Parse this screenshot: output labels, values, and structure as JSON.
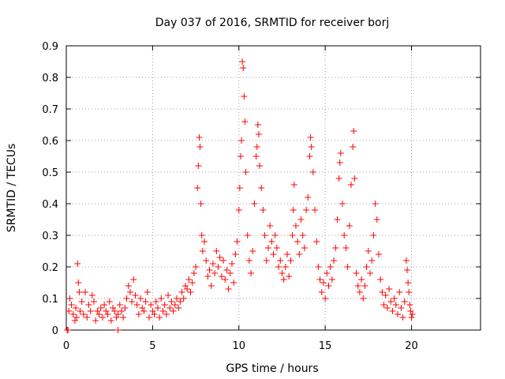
{
  "chart_data": {
    "type": "scatter",
    "title": "Day 037 of 2016, SRMTID for receiver borj",
    "xlabel": "GPS time / hours",
    "ylabel": "SRMTID / TECUs",
    "xlim": [
      0,
      24
    ],
    "ylim": [
      0,
      0.9
    ],
    "xticks": [
      0,
      5,
      10,
      15,
      20
    ],
    "yticks": [
      0,
      0.1,
      0.2,
      0.3,
      0.4,
      0.5,
      0.6,
      0.7,
      0.8,
      0.9
    ],
    "grid": true,
    "marker": "+",
    "color": "#ff0000",
    "series": [
      {
        "name": "SRMTID",
        "points": [
          [
            0.05,
            0.0
          ],
          [
            0.1,
            0.0
          ],
          [
            0.15,
            0.06
          ],
          [
            0.2,
            0.1
          ],
          [
            0.3,
            0.08
          ],
          [
            0.4,
            0.05
          ],
          [
            0.5,
            0.03
          ],
          [
            0.55,
            0.07
          ],
          [
            0.6,
            0.04
          ],
          [
            0.65,
            0.21
          ],
          [
            0.7,
            0.15
          ],
          [
            0.75,
            0.12
          ],
          [
            0.8,
            0.06
          ],
          [
            0.9,
            0.09
          ],
          [
            1.0,
            0.05
          ],
          [
            1.1,
            0.12
          ],
          [
            1.2,
            0.04
          ],
          [
            1.3,
            0.08
          ],
          [
            1.4,
            0.06
          ],
          [
            1.5,
            0.11
          ],
          [
            1.6,
            0.09
          ],
          [
            1.7,
            0.03
          ],
          [
            1.8,
            0.06
          ],
          [
            1.9,
            0.05
          ],
          [
            2.0,
            0.07
          ],
          [
            2.1,
            0.04
          ],
          [
            2.2,
            0.08
          ],
          [
            2.3,
            0.06
          ],
          [
            2.4,
            0.05
          ],
          [
            2.5,
            0.09
          ],
          [
            2.6,
            0.03
          ],
          [
            2.7,
            0.07
          ],
          [
            2.8,
            0.06
          ],
          [
            2.9,
            0.04
          ],
          [
            3.0,
            0.0
          ],
          [
            3.0,
            0.05
          ],
          [
            3.1,
            0.08
          ],
          [
            3.2,
            0.06
          ],
          [
            3.3,
            0.04
          ],
          [
            3.4,
            0.07
          ],
          [
            3.5,
            0.1
          ],
          [
            3.6,
            0.14
          ],
          [
            3.7,
            0.12
          ],
          [
            3.8,
            0.09
          ],
          [
            3.9,
            0.16
          ],
          [
            4.0,
            0.11
          ],
          [
            4.1,
            0.08
          ],
          [
            4.2,
            0.05
          ],
          [
            4.3,
            0.1
          ],
          [
            4.4,
            0.07
          ],
          [
            4.5,
            0.06
          ],
          [
            4.6,
            0.09
          ],
          [
            4.7,
            0.12
          ],
          [
            4.8,
            0.04
          ],
          [
            4.9,
            0.08
          ],
          [
            5.0,
            0.06
          ],
          [
            5.1,
            0.05
          ],
          [
            5.2,
            0.09
          ],
          [
            5.3,
            0.07
          ],
          [
            5.4,
            0.04
          ],
          [
            5.5,
            0.1
          ],
          [
            5.6,
            0.06
          ],
          [
            5.7,
            0.08
          ],
          [
            5.8,
            0.05
          ],
          [
            5.9,
            0.11
          ],
          [
            6.0,
            0.07
          ],
          [
            6.1,
            0.09
          ],
          [
            6.2,
            0.06
          ],
          [
            6.3,
            0.08
          ],
          [
            6.4,
            0.1
          ],
          [
            6.5,
            0.07
          ],
          [
            6.6,
            0.09
          ],
          [
            6.7,
            0.12
          ],
          [
            6.8,
            0.1
          ],
          [
            6.9,
            0.14
          ],
          [
            7.0,
            0.13
          ],
          [
            7.1,
            0.16
          ],
          [
            7.2,
            0.12
          ],
          [
            7.3,
            0.15
          ],
          [
            7.4,
            0.18
          ],
          [
            7.5,
            0.2
          ],
          [
            7.6,
            0.45
          ],
          [
            7.65,
            0.52
          ],
          [
            7.7,
            0.61
          ],
          [
            7.75,
            0.58
          ],
          [
            7.8,
            0.4
          ],
          [
            7.85,
            0.3
          ],
          [
            7.9,
            0.25
          ],
          [
            8.0,
            0.28
          ],
          [
            8.1,
            0.22
          ],
          [
            8.2,
            0.17
          ],
          [
            8.3,
            0.19
          ],
          [
            8.4,
            0.14
          ],
          [
            8.5,
            0.21
          ],
          [
            8.6,
            0.18
          ],
          [
            8.7,
            0.25
          ],
          [
            8.8,
            0.2
          ],
          [
            8.9,
            0.23
          ],
          [
            9.0,
            0.17
          ],
          [
            9.1,
            0.22
          ],
          [
            9.2,
            0.16
          ],
          [
            9.3,
            0.19
          ],
          [
            9.4,
            0.13
          ],
          [
            9.5,
            0.18
          ],
          [
            9.6,
            0.21
          ],
          [
            9.7,
            0.15
          ],
          [
            9.8,
            0.24
          ],
          [
            9.9,
            0.28
          ],
          [
            10.0,
            0.38
          ],
          [
            10.05,
            0.45
          ],
          [
            10.1,
            0.55
          ],
          [
            10.15,
            0.6
          ],
          [
            10.2,
            0.85
          ],
          [
            10.25,
            0.83
          ],
          [
            10.3,
            0.74
          ],
          [
            10.35,
            0.66
          ],
          [
            10.4,
            0.5
          ],
          [
            10.5,
            0.3
          ],
          [
            10.6,
            0.22
          ],
          [
            10.7,
            0.18
          ],
          [
            10.8,
            0.25
          ],
          [
            10.9,
            0.4
          ],
          [
            11.0,
            0.55
          ],
          [
            11.05,
            0.58
          ],
          [
            11.1,
            0.65
          ],
          [
            11.15,
            0.62
          ],
          [
            11.2,
            0.52
          ],
          [
            11.3,
            0.45
          ],
          [
            11.4,
            0.38
          ],
          [
            11.5,
            0.3
          ],
          [
            11.6,
            0.22
          ],
          [
            11.7,
            0.26
          ],
          [
            11.8,
            0.33
          ],
          [
            11.9,
            0.28
          ],
          [
            12.0,
            0.24
          ],
          [
            12.1,
            0.3
          ],
          [
            12.2,
            0.26
          ],
          [
            12.3,
            0.2
          ],
          [
            12.4,
            0.22
          ],
          [
            12.5,
            0.18
          ],
          [
            12.6,
            0.16
          ],
          [
            12.7,
            0.2
          ],
          [
            12.8,
            0.24
          ],
          [
            12.9,
            0.17
          ],
          [
            13.0,
            0.22
          ],
          [
            13.1,
            0.3
          ],
          [
            13.15,
            0.38
          ],
          [
            13.2,
            0.46
          ],
          [
            13.3,
            0.33
          ],
          [
            13.4,
            0.28
          ],
          [
            13.5,
            0.24
          ],
          [
            13.6,
            0.35
          ],
          [
            13.7,
            0.3
          ],
          [
            13.8,
            0.26
          ],
          [
            13.9,
            0.38
          ],
          [
            14.0,
            0.42
          ],
          [
            14.1,
            0.55
          ],
          [
            14.15,
            0.61
          ],
          [
            14.2,
            0.58
          ],
          [
            14.3,
            0.5
          ],
          [
            14.4,
            0.38
          ],
          [
            14.5,
            0.28
          ],
          [
            14.6,
            0.2
          ],
          [
            14.7,
            0.16
          ],
          [
            14.8,
            0.12
          ],
          [
            14.9,
            0.15
          ],
          [
            15.0,
            0.1
          ],
          [
            15.1,
            0.18
          ],
          [
            15.2,
            0.14
          ],
          [
            15.3,
            0.2
          ],
          [
            15.4,
            0.16
          ],
          [
            15.5,
            0.22
          ],
          [
            15.6,
            0.26
          ],
          [
            15.7,
            0.35
          ],
          [
            15.8,
            0.48
          ],
          [
            15.85,
            0.53
          ],
          [
            15.9,
            0.56
          ],
          [
            16.0,
            0.4
          ],
          [
            16.1,
            0.3
          ],
          [
            16.2,
            0.26
          ],
          [
            16.3,
            0.2
          ],
          [
            16.4,
            0.33
          ],
          [
            16.5,
            0.46
          ],
          [
            16.6,
            0.58
          ],
          [
            16.65,
            0.63
          ],
          [
            16.7,
            0.48
          ],
          [
            16.8,
            0.18
          ],
          [
            16.9,
            0.14
          ],
          [
            17.0,
            0.12
          ],
          [
            17.1,
            0.16
          ],
          [
            17.2,
            0.1
          ],
          [
            17.3,
            0.14
          ],
          [
            17.4,
            0.2
          ],
          [
            17.5,
            0.25
          ],
          [
            17.6,
            0.18
          ],
          [
            17.7,
            0.22
          ],
          [
            17.8,
            0.3
          ],
          [
            17.9,
            0.4
          ],
          [
            18.0,
            0.35
          ],
          [
            18.1,
            0.24
          ],
          [
            18.2,
            0.16
          ],
          [
            18.3,
            0.12
          ],
          [
            18.4,
            0.08
          ],
          [
            18.5,
            0.11
          ],
          [
            18.6,
            0.07
          ],
          [
            18.7,
            0.13
          ],
          [
            18.8,
            0.09
          ],
          [
            18.9,
            0.06
          ],
          [
            19.0,
            0.1
          ],
          [
            19.1,
            0.08
          ],
          [
            19.2,
            0.05
          ],
          [
            19.3,
            0.12
          ],
          [
            19.4,
            0.07
          ],
          [
            19.5,
            0.04
          ],
          [
            19.6,
            0.09
          ],
          [
            19.7,
            0.22
          ],
          [
            19.75,
            0.19
          ],
          [
            19.8,
            0.15
          ],
          [
            19.85,
            0.12
          ],
          [
            19.9,
            0.08
          ],
          [
            19.95,
            0.06
          ],
          [
            20.0,
            0.04
          ],
          [
            20.05,
            0.05
          ]
        ]
      }
    ]
  }
}
